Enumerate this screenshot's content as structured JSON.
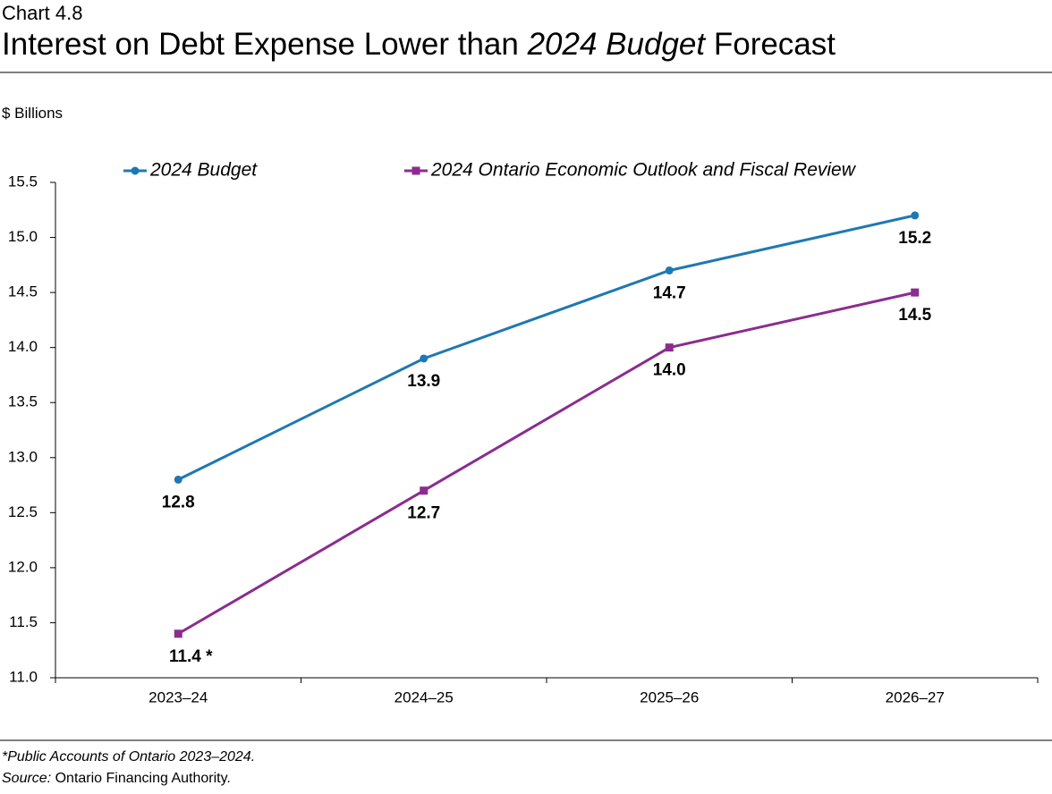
{
  "chart_data": {
    "type": "line",
    "chart_label": "Chart 4.8",
    "title_parts": [
      "Interest on Debt Expense Lower than",
      "2024 Budget",
      "Forecast"
    ],
    "y_axis_label": "$ Billions",
    "categories": [
      "2023–24",
      "2024–25",
      "2025–26",
      "2026–27"
    ],
    "series": [
      {
        "name": "2024 Budget",
        "color": "#1f78b4",
        "marker": "circle",
        "values": [
          12.8,
          13.9,
          14.7,
          15.2
        ],
        "value_labels": [
          "12.8",
          "13.9",
          "14.7",
          "15.2"
        ]
      },
      {
        "name": "2024 Ontario Economic Outlook and Fiscal Review",
        "color": "#8b2c8f",
        "marker": "square",
        "values": [
          11.4,
          12.7,
          14.0,
          14.5
        ],
        "value_labels": [
          "11.4 *",
          "12.7",
          "14.0",
          "14.5"
        ]
      }
    ],
    "ylim": [
      11,
      15.5
    ],
    "yticks": [
      {
        "value": 11,
        "label": "11.0"
      },
      {
        "value": 11.5,
        "label": "11.5"
      },
      {
        "value": 12,
        "label": "12.0"
      },
      {
        "value": 12.5,
        "label": "12.5"
      },
      {
        "value": 13,
        "label": "13.0"
      },
      {
        "value": 13.5,
        "label": "13.5"
      },
      {
        "value": 14,
        "label": "14.0"
      },
      {
        "value": 14.5,
        "label": "14.5"
      },
      {
        "value": 15,
        "label": "15.0"
      },
      {
        "value": 15.5,
        "label": "15.5"
      }
    ],
    "grid": false,
    "footnote": "*Public Accounts of Ontario 2023–2024.",
    "source_label": "Source:",
    "source": "Ontario Financing Authority."
  }
}
